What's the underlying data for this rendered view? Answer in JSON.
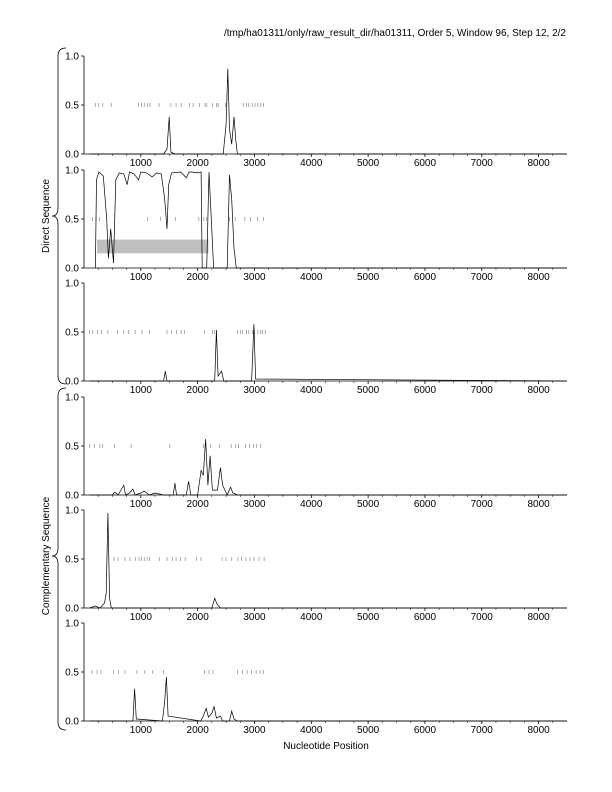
{
  "header": {
    "title": "/tmp/ha01311/only/raw_result_dir/ha01311, Order 5, Window 96, Step 12, 2/2"
  },
  "labels": {
    "direct": "Direct Sequence",
    "complementary": "Complementary Sequence",
    "xlabel": "Nucleotide Position"
  },
  "colors": {
    "line": "#000000",
    "tick": "#888888",
    "band": "#bfbfbf",
    "axis": "#000000"
  },
  "chart_data": [
    {
      "type": "line",
      "group": "Direct Sequence",
      "xlim": [
        0,
        8500
      ],
      "ylim": [
        0,
        1.0
      ],
      "xticks": [
        1000,
        2000,
        3000,
        4000,
        5000,
        6000,
        7000,
        8000
      ],
      "yticks": [
        0.0,
        0.5,
        1.0
      ],
      "xticklabels": [
        "1000",
        "2000",
        "3000",
        "4000",
        "5000",
        "6000",
        "7000",
        "8000"
      ],
      "yticklabels": [
        "0.0",
        "0.5",
        "1.0"
      ],
      "series": [
        {
          "points": [
            [
              100,
              0
            ],
            [
              1400,
              0
            ],
            [
              1460,
              0.05
            ],
            [
              1500,
              0.38
            ],
            [
              1530,
              0.02
            ],
            [
              1600,
              0
            ],
            [
              2450,
              0
            ],
            [
              2500,
              0.3
            ],
            [
              2530,
              0.87
            ],
            [
              2560,
              0.25
            ],
            [
              2600,
              0.1
            ],
            [
              2640,
              0.38
            ],
            [
              2670,
              0.15
            ],
            [
              2700,
              0
            ],
            [
              8500,
              0
            ]
          ]
        }
      ],
      "marks": [
        200,
        260,
        330,
        480,
        960,
        1010,
        1060,
        1120,
        1160,
        1320,
        1530,
        1620,
        1710,
        1860,
        1920,
        2030,
        2130,
        2160,
        2260,
        2330,
        2360,
        2490,
        2810,
        2860,
        2900,
        2960,
        3010,
        3060,
        3110,
        3160
      ],
      "mark_y": 0.5
    },
    {
      "type": "line",
      "group": "Direct Sequence",
      "xlim": [
        0,
        8500
      ],
      "ylim": [
        0,
        1.0
      ],
      "xticks": [
        1000,
        2000,
        3000,
        4000,
        5000,
        6000,
        7000,
        8000
      ],
      "yticks": [
        0.0,
        0.5,
        1.0
      ],
      "xticklabels": [
        "1000",
        "2000",
        "3000",
        "4000",
        "5000",
        "6000",
        "7000",
        "8000"
      ],
      "yticklabels": [
        "0.0",
        "0.5",
        "1.0"
      ],
      "series": [
        {
          "points": [
            [
              200,
              0
            ],
            [
              220,
              0.9
            ],
            [
              260,
              0.98
            ],
            [
              340,
              0.94
            ],
            [
              400,
              0.5
            ],
            [
              430,
              0.1
            ],
            [
              470,
              0.4
            ],
            [
              520,
              0.05
            ],
            [
              560,
              0.9
            ],
            [
              620,
              0.97
            ],
            [
              700,
              0.96
            ],
            [
              760,
              0.85
            ],
            [
              800,
              0.98
            ],
            [
              880,
              0.96
            ],
            [
              960,
              0.9
            ],
            [
              1000,
              0.98
            ],
            [
              1100,
              0.97
            ],
            [
              1200,
              0.93
            ],
            [
              1280,
              0.97
            ],
            [
              1360,
              0.96
            ],
            [
              1420,
              0.7
            ],
            [
              1460,
              0.4
            ],
            [
              1490,
              0.85
            ],
            [
              1540,
              0.97
            ],
            [
              1700,
              0.98
            ],
            [
              1800,
              0.92
            ],
            [
              1850,
              0.98
            ],
            [
              1900,
              0.98
            ],
            [
              2000,
              0.97
            ],
            [
              2060,
              0.98
            ],
            [
              2080,
              0
            ],
            [
              2160,
              0
            ],
            [
              2200,
              0.98
            ],
            [
              2240,
              0.5
            ],
            [
              2280,
              0
            ],
            [
              2520,
              0
            ],
            [
              2560,
              0.95
            ],
            [
              2600,
              0.7
            ],
            [
              2640,
              0.2
            ],
            [
              2680,
              0
            ],
            [
              8500,
              0
            ]
          ]
        }
      ],
      "marks": [
        150,
        210,
        270,
        1120,
        1350,
        1610,
        2020,
        2110,
        2160,
        2560,
        2660,
        2830,
        2930,
        3050,
        3160
      ],
      "mark_y": 0.5,
      "band": {
        "x0": 230,
        "x1": 2190,
        "y0": 0.15,
        "y1": 0.29
      }
    },
    {
      "type": "line",
      "group": "Direct Sequence",
      "xlim": [
        0,
        8500
      ],
      "ylim": [
        0,
        1.0
      ],
      "xticks": [
        1000,
        2000,
        3000,
        4000,
        5000,
        6000,
        7000,
        8000
      ],
      "yticks": [
        0.0,
        0.5,
        1.0
      ],
      "xticklabels": [
        "1000",
        "2000",
        "3000",
        "4000",
        "5000",
        "6000",
        "7000",
        "8000"
      ],
      "yticklabels": [
        "0.0",
        "0.5",
        "1.0"
      ],
      "series": [
        {
          "points": [
            [
              100,
              0
            ],
            [
              1400,
              0
            ],
            [
              1430,
              0.1
            ],
            [
              1460,
              0
            ],
            [
              2300,
              0
            ],
            [
              2330,
              0.52
            ],
            [
              2360,
              0.05
            ],
            [
              2420,
              0.1
            ],
            [
              2460,
              0
            ],
            [
              2950,
              0
            ],
            [
              2990,
              0.58
            ],
            [
              3020,
              0.02
            ],
            [
              8500,
              0
            ]
          ]
        }
      ],
      "marks": [
        100,
        150,
        240,
        310,
        420,
        590,
        700,
        780,
        900,
        1020,
        1150,
        1460,
        1540,
        1630,
        1710,
        1770,
        2120,
        2260,
        2300,
        2700,
        2750,
        2790,
        2860,
        2900,
        2960,
        3000,
        3060,
        3110,
        3140,
        3190
      ],
      "mark_y": 0.5
    },
    {
      "type": "line",
      "group": "Complementary Sequence",
      "xlim": [
        0,
        8500
      ],
      "ylim": [
        0,
        1.0
      ],
      "xticks": [
        1000,
        2000,
        3000,
        4000,
        5000,
        6000,
        7000,
        8000
      ],
      "yticks": [
        0.0,
        0.5,
        1.0
      ],
      "xticklabels": [
        "1000",
        "2000",
        "3000",
        "4000",
        "5000",
        "6000",
        "7000",
        "8000"
      ],
      "yticklabels": [
        "0.0",
        "0.5",
        "1.0"
      ],
      "series": [
        {
          "points": [
            [
              100,
              0
            ],
            [
              500,
              0
            ],
            [
              540,
              0.03
            ],
            [
              600,
              0
            ],
            [
              700,
              0.1
            ],
            [
              730,
              0
            ],
            [
              800,
              0.02
            ],
            [
              860,
              0.06
            ],
            [
              900,
              0
            ],
            [
              1000,
              0.02
            ],
            [
              1060,
              0.04
            ],
            [
              1150,
              0
            ],
            [
              1250,
              0.02
            ],
            [
              1400,
              0
            ],
            [
              1570,
              0
            ],
            [
              1600,
              0.12
            ],
            [
              1630,
              0
            ],
            [
              1800,
              0
            ],
            [
              1840,
              0.14
            ],
            [
              1880,
              0
            ],
            [
              2000,
              0
            ],
            [
              2060,
              0.25
            ],
            [
              2100,
              0.2
            ],
            [
              2140,
              0.57
            ],
            [
              2180,
              0.1
            ],
            [
              2220,
              0.4
            ],
            [
              2260,
              0.05
            ],
            [
              2350,
              0.05
            ],
            [
              2400,
              0.28
            ],
            [
              2440,
              0.1
            ],
            [
              2520,
              0
            ],
            [
              2580,
              0.08
            ],
            [
              2620,
              0.02
            ],
            [
              2700,
              0
            ],
            [
              8500,
              0
            ]
          ]
        }
      ],
      "marks": [
        100,
        180,
        280,
        330,
        540,
        830,
        1510,
        2100,
        2230,
        2380,
        2590,
        2670,
        2720,
        2840,
        2910,
        2980,
        3040,
        3110
      ],
      "mark_y": 0.5
    },
    {
      "type": "line",
      "group": "Complementary Sequence",
      "xlim": [
        0,
        8500
      ],
      "ylim": [
        0,
        1.0
      ],
      "xticks": [
        1000,
        2000,
        3000,
        4000,
        5000,
        6000,
        7000,
        8000
      ],
      "yticks": [
        0.0,
        0.5,
        1.0
      ],
      "xticklabels": [
        "1000",
        "2000",
        "3000",
        "4000",
        "5000",
        "6000",
        "7000",
        "8000"
      ],
      "yticklabels": [
        "0.0",
        "0.5",
        "1.0"
      ],
      "series": [
        {
          "points": [
            [
              100,
              0
            ],
            [
              200,
              0.02
            ],
            [
              280,
              0
            ],
            [
              360,
              0.05
            ],
            [
              390,
              0.15
            ],
            [
              420,
              0.97
            ],
            [
              450,
              0.1
            ],
            [
              480,
              0
            ],
            [
              2250,
              0
            ],
            [
              2300,
              0.1
            ],
            [
              2340,
              0.04
            ],
            [
              2400,
              0
            ],
            [
              8500,
              0
            ]
          ]
        }
      ],
      "marks": [
        530,
        600,
        720,
        810,
        910,
        970,
        1010,
        1060,
        1110,
        1150,
        1330,
        1460,
        1560,
        1620,
        1700,
        1780,
        1980,
        2060,
        2430,
        2500,
        2600,
        2710,
        2770,
        2850,
        2920,
        2990,
        3080,
        3170
      ],
      "mark_y": 0.5
    },
    {
      "type": "line",
      "group": "Complementary Sequence",
      "xlim": [
        0,
        8500
      ],
      "ylim": [
        0,
        1.0
      ],
      "xticks": [
        1000,
        2000,
        3000,
        4000,
        5000,
        6000,
        7000,
        8000
      ],
      "yticks": [
        0.0,
        0.5,
        1.0
      ],
      "xticklabels": [
        "1000",
        "2000",
        "3000",
        "4000",
        "5000",
        "6000",
        "7000",
        "8000"
      ],
      "yticklabels": [
        "0.0",
        "0.5",
        "1.0"
      ],
      "series": [
        {
          "points": [
            [
              100,
              0
            ],
            [
              860,
              0
            ],
            [
              890,
              0.33
            ],
            [
              920,
              0.02
            ],
            [
              1380,
              0
            ],
            [
              1420,
              0.2
            ],
            [
              1450,
              0.45
            ],
            [
              1480,
              0.05
            ],
            [
              2050,
              0
            ],
            [
              2100,
              0.05
            ],
            [
              2150,
              0.13
            ],
            [
              2190,
              0.04
            ],
            [
              2250,
              0.08
            ],
            [
              2290,
              0.15
            ],
            [
              2330,
              0.03
            ],
            [
              2400,
              0.05
            ],
            [
              2440,
              0
            ],
            [
              2560,
              0
            ],
            [
              2600,
              0.1
            ],
            [
              2640,
              0.02
            ],
            [
              2700,
              0
            ],
            [
              8500,
              0
            ]
          ]
        }
      ],
      "marks": [
        140,
        230,
        300,
        520,
        610,
        720,
        930,
        1070,
        1210,
        1400,
        2120,
        2200,
        2270,
        2700,
        2790,
        2870,
        2950,
        3030,
        3100,
        3160
      ],
      "mark_y": 0.5
    }
  ]
}
